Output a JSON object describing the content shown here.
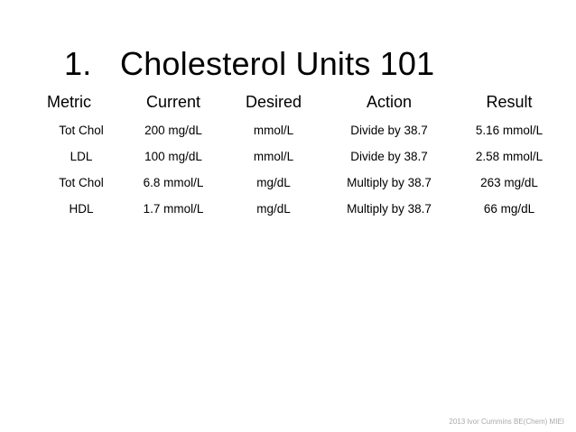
{
  "title": {
    "number": "1.",
    "text": "Cholesterol Units 101"
  },
  "table": {
    "headers": {
      "metric": "Metric",
      "current": "Current",
      "desired": "Desired",
      "action": "Action",
      "result": "Result"
    },
    "rows": [
      {
        "metric": "Tot Chol",
        "current": "200 mg/dL",
        "desired": "mmol/L",
        "action": "Divide by 38.7",
        "result": "5.16 mmol/L"
      },
      {
        "metric": "LDL",
        "current": "100 mg/dL",
        "desired": "mmol/L",
        "action": "Divide by 38.7",
        "result": "2.58 mmol/L"
      },
      {
        "metric": "Tot Chol",
        "current": "6.8 mmol/L",
        "desired": "mg/dL",
        "action": "Multiply by 38.7",
        "result": "263 mg/dL"
      },
      {
        "metric": "HDL",
        "current": "1.7 mmol/L",
        "desired": "mg/dL",
        "action": "Multiply by 38.7",
        "result": "66 mg/dL"
      }
    ]
  },
  "footer": {
    "copyright": "2013 Ivor Cummins BE(Chem) MIEI"
  }
}
